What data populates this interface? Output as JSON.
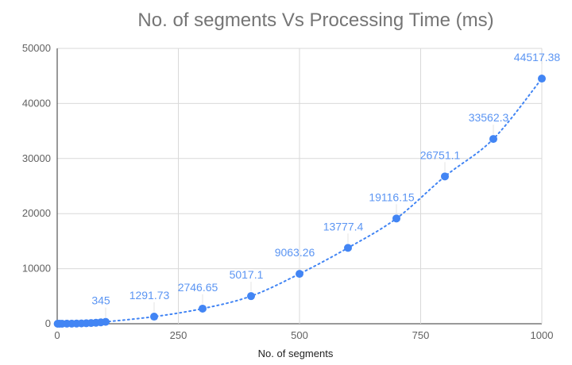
{
  "chart_data": {
    "type": "scatter",
    "title": "No. of segments Vs Processing Time (ms)",
    "xlabel": "No. of segments",
    "ylabel": "",
    "xlim": [
      0,
      1000
    ],
    "ylim": [
      0,
      50000
    ],
    "x_ticks": [
      "0",
      "250",
      "500",
      "750",
      "1000"
    ],
    "y_ticks": [
      "0",
      "10000",
      "20000",
      "30000",
      "40000",
      "50000"
    ],
    "grid": true,
    "trendline": "dotted polynomial",
    "color": "#4285f4",
    "label_color": "#5b95f3",
    "points": [
      {
        "x": 1,
        "y": 0.5
      },
      {
        "x": 5,
        "y": 3
      },
      {
        "x": 10,
        "y": 7
      },
      {
        "x": 20,
        "y": 15
      },
      {
        "x": 30,
        "y": 25
      },
      {
        "x": 40,
        "y": 40
      },
      {
        "x": 50,
        "y": 60
      },
      {
        "x": 60,
        "y": 90
      },
      {
        "x": 70,
        "y": 130
      },
      {
        "x": 80,
        "y": 180
      },
      {
        "x": 90,
        "y": 260
      },
      {
        "x": 100,
        "y": 345,
        "label": "345"
      },
      {
        "x": 200,
        "y": 1291.73,
        "label": "1291.73"
      },
      {
        "x": 300,
        "y": 2746.65,
        "label": "2746.65"
      },
      {
        "x": 400,
        "y": 5017.1,
        "label": "5017.1"
      },
      {
        "x": 500,
        "y": 9063.26,
        "label": "9063.26"
      },
      {
        "x": 600,
        "y": 13777.4,
        "label": "13777.4"
      },
      {
        "x": 700,
        "y": 19116.15,
        "label": "19116.15"
      },
      {
        "x": 800,
        "y": 26751.1,
        "label": "26751.1"
      },
      {
        "x": 900,
        "y": 33562.3,
        "label": "33562.3"
      },
      {
        "x": 1000,
        "y": 44517.38,
        "label": "44517.38"
      }
    ]
  }
}
